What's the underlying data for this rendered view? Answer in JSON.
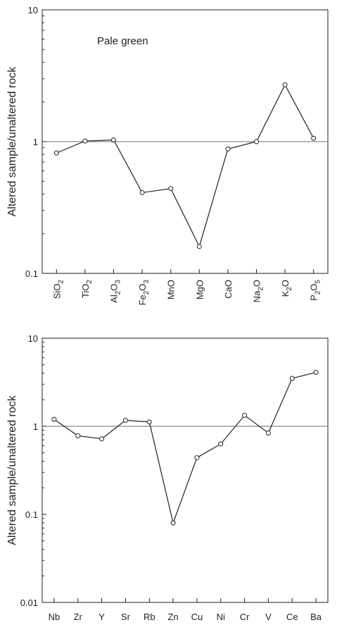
{
  "chart_data": [
    {
      "type": "line",
      "title": "",
      "annotation": "Pale green",
      "ylabel": "Altered sample/unaltered rock",
      "xlabel": "",
      "yscale": "log",
      "ylim": [
        0.1,
        10
      ],
      "yticks": [
        "0.1",
        "1",
        "10"
      ],
      "reference_line": 1,
      "categories": [
        {
          "base": "SiO",
          "sub": "2"
        },
        {
          "base": "TiO",
          "sub": "2"
        },
        {
          "base": "Al",
          "sub": "2",
          "base2": "O",
          "sub2": "3"
        },
        {
          "base": "Fe",
          "sub": "2",
          "base2": "O",
          "sub2": "3"
        },
        {
          "base": "MnO"
        },
        {
          "base": "MgO"
        },
        {
          "base": "CaO"
        },
        {
          "base": "Na",
          "sub": "2",
          "base2": "O"
        },
        {
          "base": "K",
          "sub": "2",
          "base2": "O"
        },
        {
          "base": "P",
          "sub": "2",
          "base2": "O",
          "sub2": "5"
        }
      ],
      "values": [
        0.82,
        1.01,
        1.03,
        0.41,
        0.44,
        0.16,
        0.88,
        1.0,
        2.7,
        1.06
      ]
    },
    {
      "type": "line",
      "title": "",
      "ylabel": "Altered sample/unaltered rock",
      "xlabel": "",
      "yscale": "log",
      "ylim": [
        0.01,
        10
      ],
      "yticks": [
        "0.01",
        "0.1",
        "1",
        "10"
      ],
      "reference_line": 1,
      "categories": [
        {
          "base": "Nb"
        },
        {
          "base": "Zr"
        },
        {
          "base": "Y"
        },
        {
          "base": "Sr"
        },
        {
          "base": "Rb"
        },
        {
          "base": "Zn"
        },
        {
          "base": "Cu"
        },
        {
          "base": "Ni"
        },
        {
          "base": "Cr"
        },
        {
          "base": "V"
        },
        {
          "base": "Ce"
        },
        {
          "base": "Ba"
        }
      ],
      "values": [
        1.2,
        0.78,
        0.72,
        1.17,
        1.12,
        0.08,
        0.44,
        0.63,
        1.33,
        0.84,
        3.5,
        4.1
      ]
    }
  ]
}
